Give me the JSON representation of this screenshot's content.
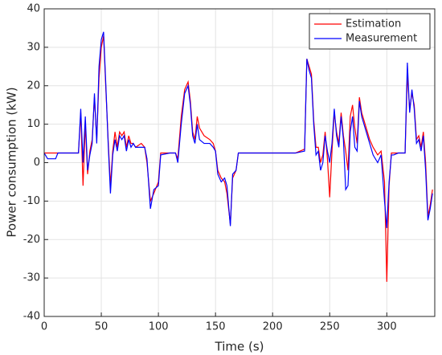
{
  "chart_data": {
    "type": "line",
    "xlabel": "Time (s)",
    "ylabel": "Power consumption (kW)",
    "x": [
      0,
      3,
      10,
      12,
      30,
      32,
      34,
      36,
      38,
      40,
      42,
      44,
      46,
      48,
      50,
      52,
      54,
      56,
      58,
      60,
      62,
      64,
      66,
      68,
      70,
      72,
      74,
      76,
      78,
      80,
      85,
      88,
      90,
      93,
      96,
      100,
      102,
      110,
      115,
      117,
      120,
      123,
      126,
      128,
      130,
      132,
      134,
      136,
      140,
      145,
      148,
      150,
      152,
      155,
      158,
      160,
      163,
      165,
      168,
      170,
      180,
      200,
      220,
      228,
      230,
      232,
      234,
      236,
      238,
      240,
      242,
      244,
      246,
      248,
      250,
      252,
      254,
      256,
      258,
      260,
      262,
      264,
      266,
      268,
      270,
      272,
      274,
      276,
      278,
      280,
      282,
      285,
      288,
      292,
      295,
      298,
      300,
      302,
      304,
      306,
      310,
      316,
      318,
      320,
      322,
      324,
      326,
      328,
      330,
      332,
      334,
      336,
      338,
      340
    ],
    "series": [
      {
        "name": "Estimation",
        "color": "#ff0000",
        "values": [
          2.5,
          2.5,
          2.5,
          2.5,
          2.5,
          13,
          -6,
          10,
          -3,
          3,
          6,
          17,
          6,
          22,
          30,
          33,
          19,
          6,
          -6,
          3,
          8,
          4,
          8,
          7,
          8,
          4,
          7,
          5,
          5,
          4,
          5,
          4,
          0,
          -10,
          -8,
          -5,
          2.5,
          2.5,
          2.5,
          1,
          12,
          19,
          21,
          16,
          8,
          6,
          12,
          9,
          7,
          6,
          5,
          3,
          -2,
          -4,
          -5,
          -8,
          -16,
          -4,
          -2,
          2.5,
          2.5,
          2.5,
          2.5,
          3.5,
          27,
          25,
          23,
          11,
          4,
          4,
          0,
          2,
          8,
          1,
          -9,
          3,
          13,
          8,
          5,
          13,
          7,
          3,
          -2,
          12,
          15,
          9,
          5,
          17,
          13,
          11,
          9,
          6,
          4,
          2,
          3,
          -5,
          -31,
          -6,
          2.5,
          2.5,
          2.5,
          2.5,
          23,
          14,
          18,
          15,
          6,
          7,
          4,
          8,
          0,
          -14,
          -11,
          -7
        ]
      },
      {
        "name": "Measurement",
        "color": "#0000ff",
        "values": [
          2.5,
          1,
          1,
          2.5,
          2.5,
          14,
          0,
          12,
          -2,
          2,
          5,
          18,
          5,
          25,
          32,
          34,
          20,
          5,
          -8,
          2,
          6,
          3,
          7,
          6,
          7,
          3,
          6,
          4,
          5,
          4,
          4,
          4,
          1,
          -12,
          -7,
          -6,
          2,
          2.5,
          2.5,
          0,
          10,
          18,
          20,
          15,
          7,
          5,
          10,
          6,
          5,
          5,
          4,
          3,
          -3,
          -5,
          -4,
          -6,
          -16.5,
          -3,
          -2,
          2.5,
          2.5,
          2.5,
          2.5,
          3,
          27,
          24,
          22,
          10,
          2,
          3,
          -2,
          0,
          7,
          3,
          0,
          5,
          14,
          7,
          4,
          12,
          6,
          -7,
          -6,
          8,
          12,
          4,
          3,
          16,
          12,
          10,
          8,
          5,
          2,
          0,
          2,
          -10,
          -17,
          -5,
          2,
          2,
          2.5,
          2.5,
          26,
          13,
          19,
          14,
          5,
          6,
          3,
          7,
          -2,
          -15,
          -12,
          -8
        ]
      }
    ],
    "xlim": [
      0,
      342
    ],
    "xticks": [
      0,
      50,
      100,
      150,
      200,
      250,
      300
    ],
    "ylim": [
      -40,
      40
    ],
    "yticks": [
      -40,
      -30,
      -20,
      -10,
      0,
      10,
      20,
      30,
      40
    ],
    "grid": true,
    "legend": "top-right"
  }
}
